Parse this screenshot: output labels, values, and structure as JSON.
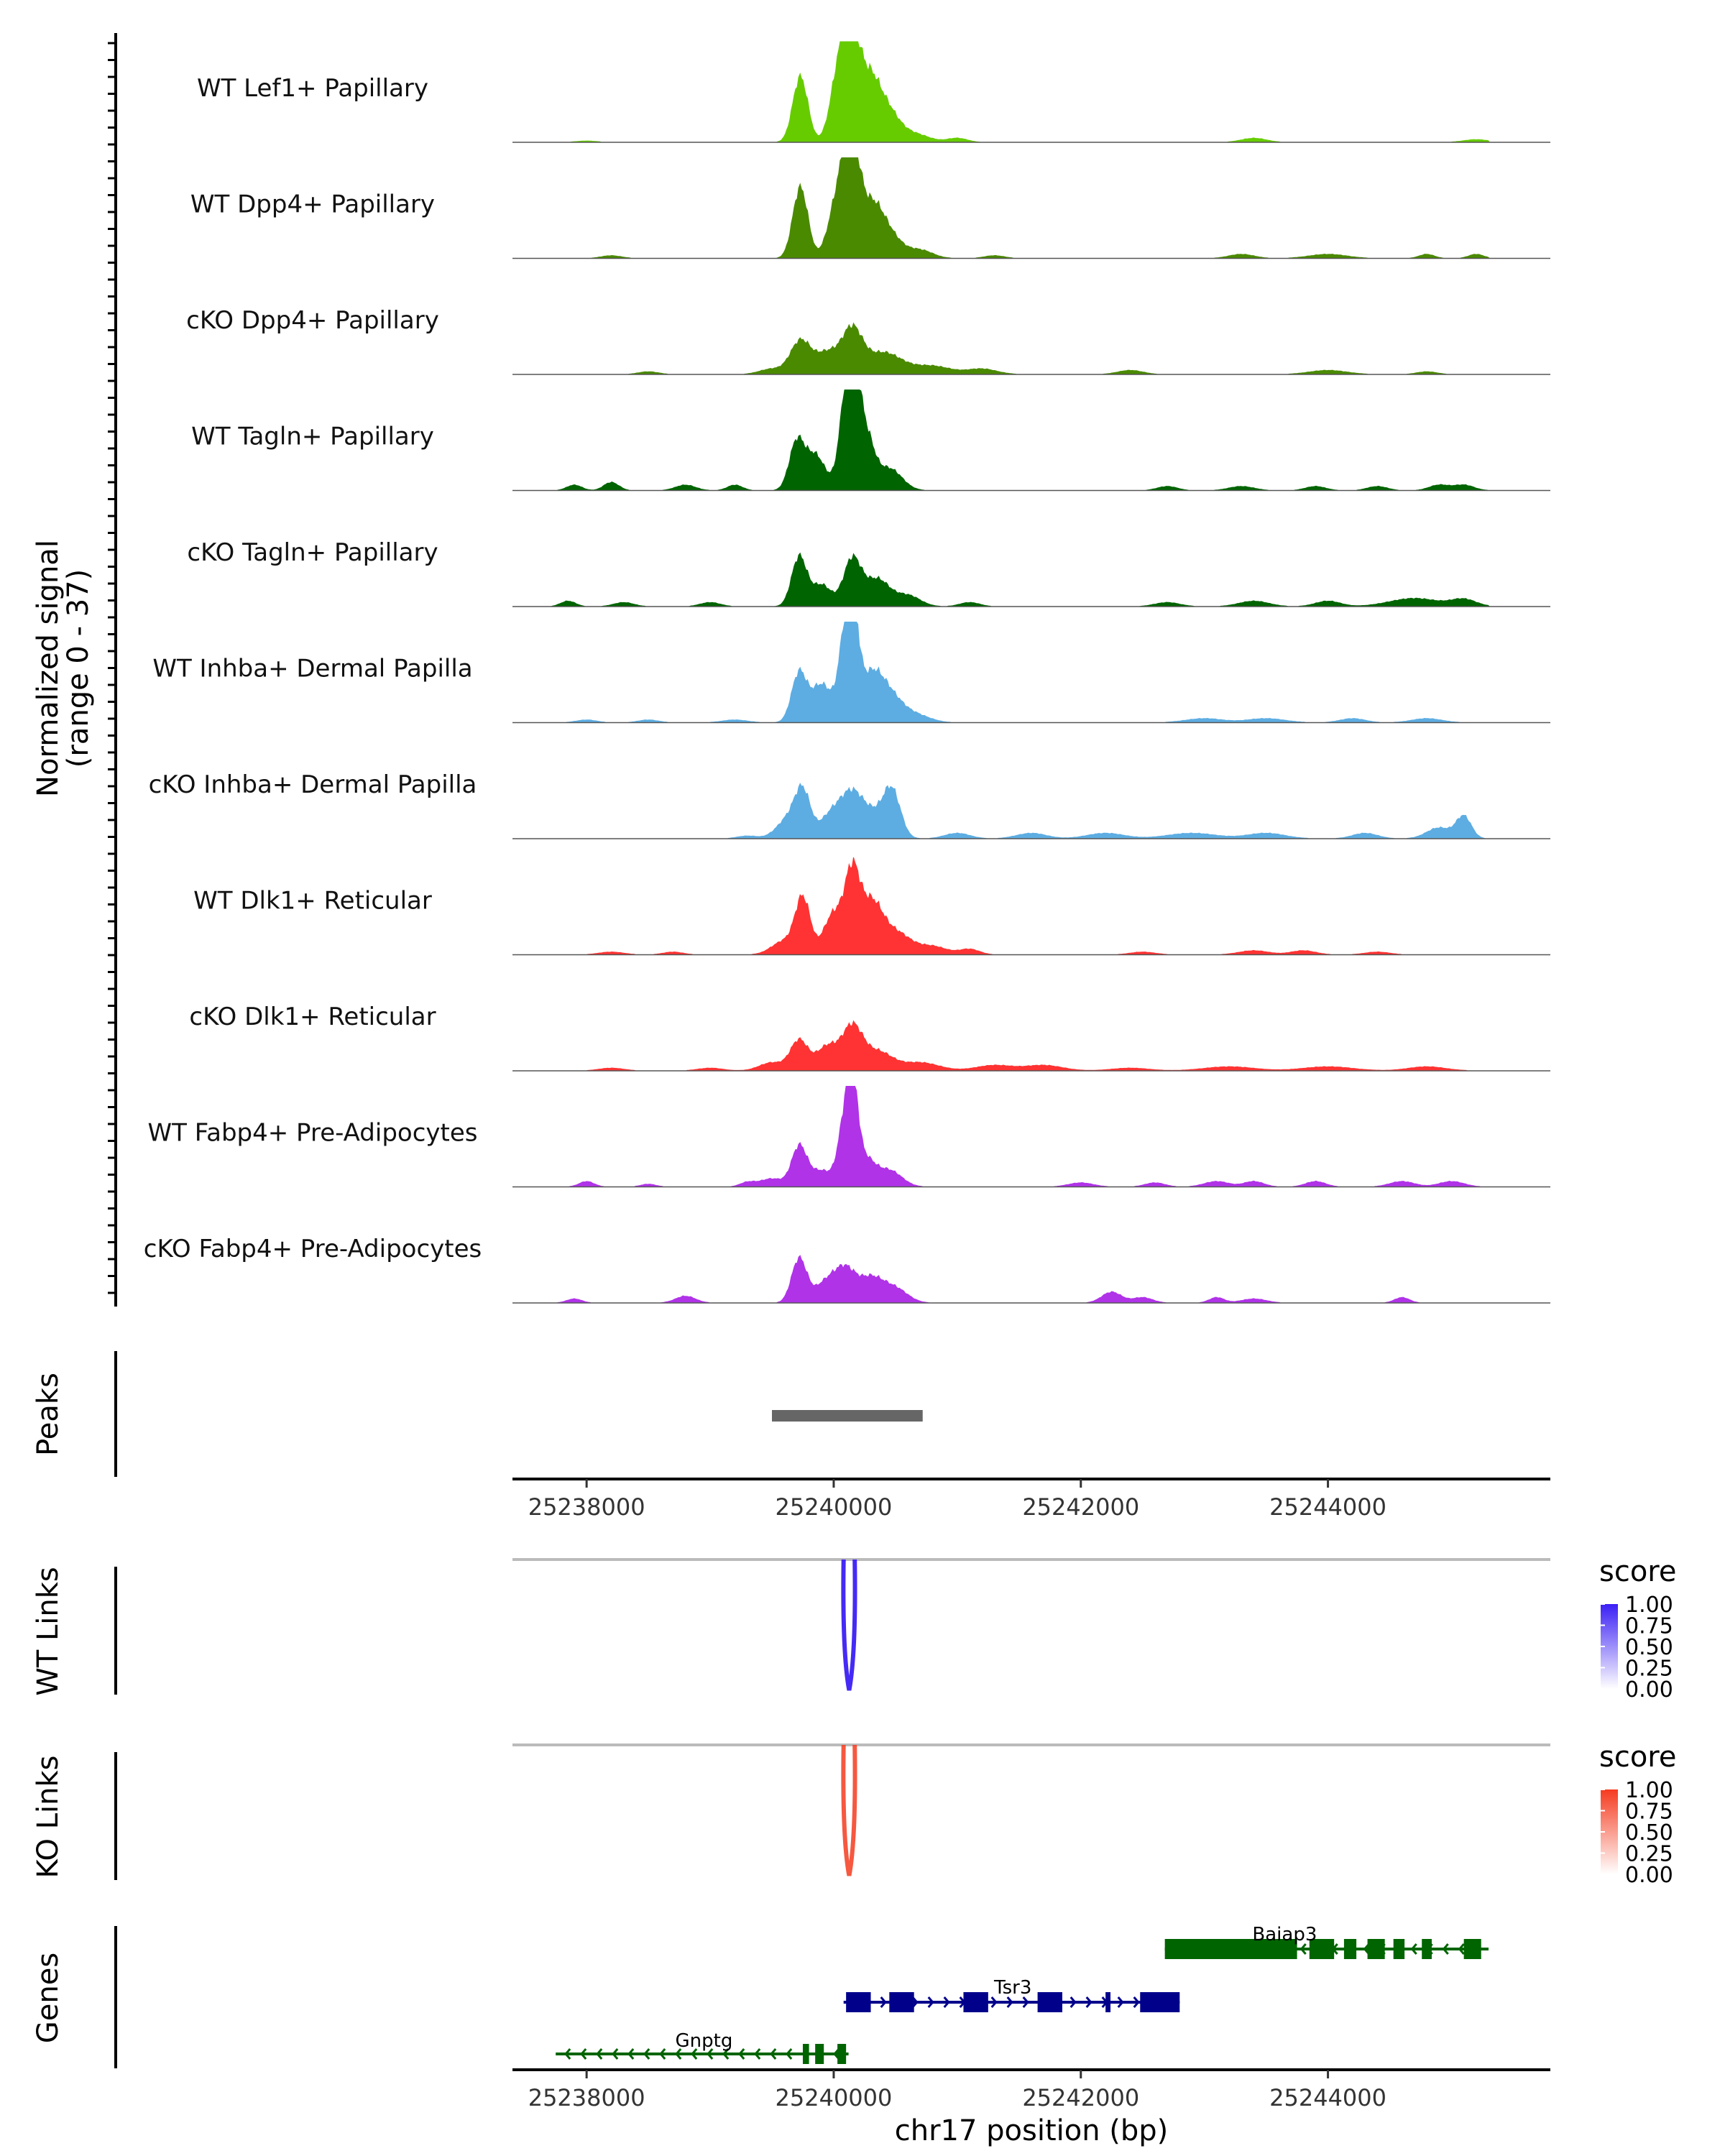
{
  "chart_data": {
    "type": "area",
    "title": "",
    "xlabel": "chr17 position (bp)",
    "xlim": [
      25237400,
      25245800
    ],
    "x_ticks": [
      25238000,
      25240000,
      25242000,
      25244000
    ],
    "x_tick_labels": [
      "25238000",
      "25240000",
      "25242000",
      "25244000"
    ],
    "coverage": {
      "ylabel": "Normalized signal",
      "ylabel_sub": "(range 0 - 37)",
      "ylim": [
        0,
        37
      ],
      "tracks": [
        {
          "name": "WT Lef1+ Papillary",
          "color": "#66CC00",
          "peaks": [
            [
              25238000,
              0.5,
              80
            ],
            [
              25239730,
              24,
              60
            ],
            [
              25240050,
              28,
              70
            ],
            [
              25240150,
              33,
              60
            ],
            [
              25240280,
              20,
              80
            ],
            [
              25240420,
              12,
              100
            ],
            [
              25240650,
              3,
              120
            ],
            [
              25241000,
              1.5,
              80
            ],
            [
              25243400,
              1.5,
              100
            ],
            [
              25245200,
              1,
              100
            ]
          ]
        },
        {
          "name": "WT Dpp4+ Papillary",
          "color": "#4A8A00",
          "peaks": [
            [
              25238200,
              1,
              80
            ],
            [
              25239730,
              26,
              60
            ],
            [
              25240050,
              25,
              80
            ],
            [
              25240150,
              34,
              60
            ],
            [
              25240300,
              18,
              90
            ],
            [
              25240450,
              8,
              100
            ],
            [
              25240700,
              3,
              100
            ],
            [
              25241300,
              1,
              80
            ],
            [
              25243300,
              1.5,
              100
            ],
            [
              25244000,
              1.5,
              150
            ],
            [
              25244800,
              1.5,
              60
            ],
            [
              25245200,
              1.5,
              60
            ]
          ]
        },
        {
          "name": "cKO Dpp4+ Papillary",
          "color": "#4A8A00",
          "peaks": [
            [
              25238500,
              1,
              80
            ],
            [
              25239500,
              2,
              100
            ],
            [
              25239730,
              12,
              80
            ],
            [
              25239950,
              8,
              100
            ],
            [
              25240150,
              15,
              80
            ],
            [
              25240400,
              8,
              150
            ],
            [
              25240800,
              3,
              150
            ],
            [
              25241200,
              2,
              120
            ],
            [
              25242400,
              1.5,
              100
            ],
            [
              25244000,
              1.5,
              150
            ],
            [
              25244800,
              1,
              80
            ]
          ]
        },
        {
          "name": "WT Tagln+ Papillary",
          "color": "#006400",
          "peaks": [
            [
              25237900,
              2,
              60
            ],
            [
              25238200,
              3,
              60
            ],
            [
              25238800,
              2,
              80
            ],
            [
              25239200,
              2,
              60
            ],
            [
              25239700,
              17,
              60
            ],
            [
              25239850,
              13,
              80
            ],
            [
              25240100,
              25,
              60
            ],
            [
              25240150,
              36,
              50
            ],
            [
              25240250,
              21,
              70
            ],
            [
              25240450,
              8,
              100
            ],
            [
              25242700,
              1.5,
              80
            ],
            [
              25243300,
              1.5,
              100
            ],
            [
              25243900,
              1.5,
              80
            ],
            [
              25244400,
              1.5,
              80
            ],
            [
              25244900,
              2,
              80
            ],
            [
              25245100,
              2,
              80
            ]
          ]
        },
        {
          "name": "cKO Tagln+ Papillary",
          "color": "#006400",
          "peaks": [
            [
              25237850,
              2,
              60
            ],
            [
              25238300,
              1.5,
              80
            ],
            [
              25239000,
              1.5,
              80
            ],
            [
              25239720,
              18,
              60
            ],
            [
              25239900,
              8,
              80
            ],
            [
              25240150,
              17,
              70
            ],
            [
              25240350,
              10,
              100
            ],
            [
              25240600,
              4,
              100
            ],
            [
              25241100,
              1.5,
              80
            ],
            [
              25242700,
              1.5,
              100
            ],
            [
              25243400,
              2,
              120
            ],
            [
              25244000,
              2,
              100
            ],
            [
              25244700,
              3,
              200
            ],
            [
              25245100,
              2.5,
              100
            ]
          ]
        },
        {
          "name": "WT Inhba+ Dermal Papilla",
          "color": "#5DADE2",
          "peaks": [
            [
              25238000,
              1,
              80
            ],
            [
              25238500,
              1,
              80
            ],
            [
              25239200,
              1,
              100
            ],
            [
              25239720,
              18,
              60
            ],
            [
              25239900,
              14,
              80
            ],
            [
              25240100,
              27,
              60
            ],
            [
              25240150,
              30,
              50
            ],
            [
              25240300,
              16,
              90
            ],
            [
              25240450,
              9,
              100
            ],
            [
              25240650,
              3,
              120
            ],
            [
              25243000,
              1.5,
              150
            ],
            [
              25243500,
              1.5,
              150
            ],
            [
              25244200,
              1.5,
              100
            ],
            [
              25244800,
              1.5,
              120
            ]
          ]
        },
        {
          "name": "cKO Inhba+ Dermal Papilla",
          "color": "#5DADE2",
          "peaks": [
            [
              25239300,
              1,
              80
            ],
            [
              25239650,
              8,
              100
            ],
            [
              25239750,
              14,
              60
            ],
            [
              25240000,
              10,
              100
            ],
            [
              25240150,
              12,
              80
            ],
            [
              25240300,
              9,
              100
            ],
            [
              25240470,
              17,
              70
            ],
            [
              25241000,
              2,
              100
            ],
            [
              25241600,
              2,
              120
            ],
            [
              25242200,
              2,
              150
            ],
            [
              25242900,
              2,
              200
            ],
            [
              25243500,
              2,
              150
            ],
            [
              25244300,
              2,
              100
            ],
            [
              25244900,
              4,
              100
            ],
            [
              25245100,
              8,
              60
            ]
          ]
        },
        {
          "name": "WT Dlk1+ Reticular",
          "color": "#FF3333",
          "peaks": [
            [
              25238200,
              1,
              100
            ],
            [
              25238700,
              1,
              80
            ],
            [
              25239600,
              5,
              100
            ],
            [
              25239750,
              20,
              60
            ],
            [
              25240000,
              15,
              80
            ],
            [
              25240150,
              27,
              60
            ],
            [
              25240300,
              18,
              90
            ],
            [
              25240500,
              8,
              120
            ],
            [
              25240800,
              3,
              120
            ],
            [
              25241100,
              2,
              80
            ],
            [
              25242500,
              1,
              100
            ],
            [
              25243400,
              1.5,
              120
            ],
            [
              25243800,
              1.5,
              100
            ],
            [
              25244400,
              1,
              100
            ]
          ]
        },
        {
          "name": "cKO Dlk1+ Reticular",
          "color": "#FF3333",
          "peaks": [
            [
              25238200,
              1,
              100
            ],
            [
              25239000,
              1,
              100
            ],
            [
              25239500,
              3,
              100
            ],
            [
              25239720,
              11,
              70
            ],
            [
              25239950,
              9,
              90
            ],
            [
              25240150,
              15,
              80
            ],
            [
              25240350,
              7,
              120
            ],
            [
              25240700,
              3,
              150
            ],
            [
              25241300,
              2,
              150
            ],
            [
              25241700,
              2,
              150
            ],
            [
              25242400,
              1,
              150
            ],
            [
              25243200,
              1.5,
              200
            ],
            [
              25244000,
              1.5,
              200
            ],
            [
              25244800,
              1.5,
              150
            ]
          ]
        },
        {
          "name": "WT Fabp4+ Pre-Adipocytes",
          "color": "#B033E8",
          "peaks": [
            [
              25238000,
              2,
              60
            ],
            [
              25238500,
              1,
              60
            ],
            [
              25239300,
              1.5,
              60
            ],
            [
              25239500,
              3,
              100
            ],
            [
              25239720,
              14,
              60
            ],
            [
              25239900,
              6,
              100
            ],
            [
              25240080,
              18,
              50
            ],
            [
              25240150,
              34,
              45
            ],
            [
              25240250,
              10,
              80
            ],
            [
              25240450,
              6,
              100
            ],
            [
              25242000,
              1.5,
              100
            ],
            [
              25242600,
              1.5,
              80
            ],
            [
              25243100,
              2,
              100
            ],
            [
              25243400,
              2,
              80
            ],
            [
              25243900,
              2,
              80
            ],
            [
              25244600,
              2,
              100
            ],
            [
              25245000,
              2,
              100
            ]
          ]
        },
        {
          "name": "cKO Fabp4+ Pre-Adipocytes",
          "color": "#B033E8",
          "peaks": [
            [
              25237900,
              1.5,
              60
            ],
            [
              25238800,
              2.5,
              80
            ],
            [
              25239720,
              16,
              60
            ],
            [
              25239950,
              8,
              100
            ],
            [
              25240100,
              10,
              80
            ],
            [
              25240300,
              9,
              100
            ],
            [
              25240500,
              5,
              100
            ],
            [
              25242250,
              4,
              80
            ],
            [
              25242500,
              2,
              80
            ],
            [
              25243100,
              2,
              60
            ],
            [
              25243400,
              1.5,
              100
            ],
            [
              25244600,
              2,
              60
            ]
          ]
        }
      ]
    },
    "peaks_track": {
      "label": "Peaks",
      "regions": [
        [
          25239500,
          25240720
        ]
      ],
      "color": "#666666"
    },
    "links": [
      {
        "label": "WT Links",
        "legend_title": "score",
        "legend_ticks": [
          "1.00",
          "0.75",
          "0.50",
          "0.25",
          "0.00"
        ],
        "color_high": "#3B1FF5",
        "color_low": "#FFFFFF",
        "link": [
          25240080,
          25240170
        ],
        "score": 0.95
      },
      {
        "label": "KO Links",
        "legend_title": "score",
        "legend_ticks": [
          "1.00",
          "0.75",
          "0.50",
          "0.25",
          "0.00"
        ],
        "color_high": "#F53B1F",
        "color_low": "#FFFFFF",
        "link": [
          25240080,
          25240170
        ],
        "score": 0.85
      }
    ],
    "genes": {
      "label": "Genes",
      "items": [
        {
          "name": "Baiap3",
          "start": 25242680,
          "end": 25245300,
          "strand": "-",
          "color": "#006400",
          "exons": [
            [
              25242680,
              25243750
            ],
            [
              25243850,
              25244050
            ],
            [
              25244130,
              25244230
            ],
            [
              25244320,
              25244460
            ],
            [
              25244530,
              25244620
            ],
            [
              25244760,
              25244840
            ],
            [
              25245100,
              25245240
            ]
          ]
        },
        {
          "name": "Tsr3",
          "start": 25240080,
          "end": 25242800,
          "strand": "+",
          "color": "#00008B",
          "exons": [
            [
              25240100,
              25240300
            ],
            [
              25240450,
              25240650
            ],
            [
              25241050,
              25241250
            ],
            [
              25241650,
              25241850
            ],
            [
              25242200,
              25242240
            ],
            [
              25242480,
              25242800
            ]
          ]
        },
        {
          "name": "Gnptg",
          "start": 25237750,
          "end": 25240120,
          "strand": "-",
          "color": "#006400",
          "exons": [
            [
              25239750,
              25239800
            ],
            [
              25239850,
              25239920
            ],
            [
              25240030,
              25240100
            ]
          ]
        }
      ]
    }
  }
}
